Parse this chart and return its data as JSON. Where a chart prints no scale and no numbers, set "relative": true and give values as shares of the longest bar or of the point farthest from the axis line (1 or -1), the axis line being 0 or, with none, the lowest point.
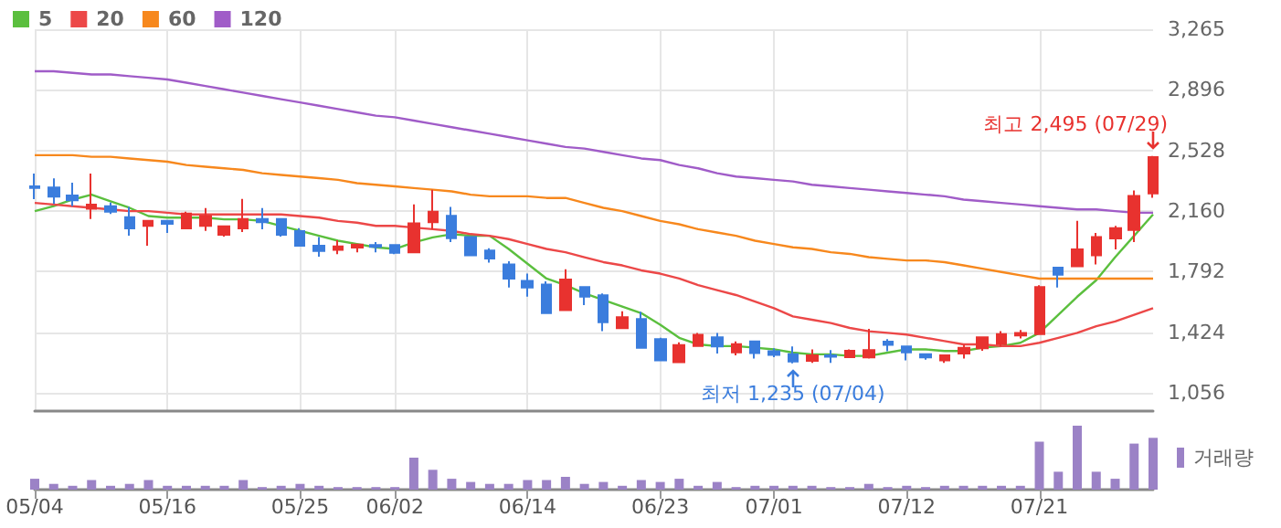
{
  "chart_data": [
    {
      "type": "candlestick",
      "categories": [
        null,
        null,
        null,
        null,
        null,
        null,
        null,
        null,
        null,
        null,
        null,
        null,
        null,
        null,
        null,
        null,
        null,
        null,
        null,
        null,
        null,
        null,
        null,
        null,
        null,
        null,
        null,
        null,
        null,
        null,
        null,
        null,
        null,
        null,
        null,
        null,
        null,
        null,
        null,
        null,
        null,
        null,
        null,
        null,
        null,
        null,
        null,
        null,
        null,
        null,
        null,
        null,
        null,
        null,
        null,
        null,
        null,
        null,
        null,
        null
      ],
      "ohlc": [
        [
          2310,
          2388,
          2233,
          2300
        ],
        [
          2303,
          2359,
          2204,
          2248
        ],
        [
          2255,
          2333,
          2189,
          2226
        ],
        [
          2175,
          2388,
          2112,
          2200
        ],
        [
          2189,
          2212,
          2142,
          2156
        ],
        [
          2123,
          2186,
          2010,
          2055
        ],
        [
          2071,
          2101,
          1950,
          2101
        ],
        [
          2101,
          2101,
          2027,
          2083
        ],
        [
          2055,
          2156,
          2055,
          2145
        ],
        [
          2071,
          2178,
          2040,
          2130
        ],
        [
          2016,
          2068,
          2005,
          2068
        ],
        [
          2055,
          2234,
          2033,
          2112
        ],
        [
          2112,
          2178,
          2049,
          2093
        ],
        [
          2112,
          2112,
          2005,
          2016
        ],
        [
          2038,
          2057,
          1950,
          1950
        ],
        [
          1950,
          2002,
          1883,
          1917
        ],
        [
          1924,
          1983,
          1898,
          1946
        ],
        [
          1939,
          1957,
          1909,
          1957
        ],
        [
          1954,
          1972,
          1909,
          1943
        ],
        [
          1954,
          1954,
          1898,
          1906
        ],
        [
          1909,
          2201,
          1909,
          2086
        ],
        [
          2093,
          2289,
          2049,
          2156
        ],
        [
          2132,
          2186,
          1972,
          1995
        ],
        [
          2002,
          2002,
          1891,
          1891
        ],
        [
          1921,
          1935,
          1847,
          1872
        ],
        [
          1836,
          1855,
          1695,
          1750
        ],
        [
          1736,
          1780,
          1640,
          1695
        ],
        [
          1714,
          1733,
          1540,
          1540
        ],
        [
          1558,
          1806,
          1558,
          1744
        ],
        [
          1699,
          1699,
          1589,
          1640
        ],
        [
          1648,
          1659,
          1430,
          1485
        ],
        [
          1448,
          1551,
          1448,
          1515
        ],
        [
          1504,
          1548,
          1330,
          1330
        ],
        [
          1382,
          1390,
          1253,
          1253
        ],
        [
          1242,
          1363,
          1242,
          1346
        ],
        [
          1341,
          1420,
          1341,
          1408
        ],
        [
          1393,
          1419,
          1294,
          1338
        ],
        [
          1301,
          1368,
          1283,
          1352
        ],
        [
          1368,
          1368,
          1264,
          1297
        ],
        [
          1308,
          1327,
          1272,
          1286
        ],
        [
          1290,
          1338,
          1235,
          1246
        ],
        [
          1250,
          1319,
          1238,
          1283
        ],
        [
          1283,
          1316,
          1238,
          1275
        ],
        [
          1272,
          1319,
          1268,
          1312
        ],
        [
          1271,
          1445,
          1264,
          1316
        ],
        [
          1367,
          1382,
          1308,
          1348
        ],
        [
          1338,
          1338,
          1253,
          1301
        ],
        [
          1290,
          1290,
          1257,
          1271
        ],
        [
          1253,
          1283,
          1238,
          1283
        ],
        [
          1294,
          1349,
          1264,
          1330
        ],
        [
          1327,
          1393,
          1312,
          1393
        ],
        [
          1352,
          1430,
          1338,
          1412
        ],
        [
          1404,
          1438,
          1386,
          1419
        ],
        [
          1412,
          1710,
          1412,
          1699
        ],
        [
          1817,
          1817,
          1695,
          1773
        ],
        [
          1825,
          2101,
          1825,
          1928
        ],
        [
          1891,
          2027,
          1836,
          2002
        ],
        [
          1994,
          2071,
          1928,
          2057
        ],
        [
          2046,
          2285,
          1972,
          2252
        ],
        [
          2267,
          2495,
          2241,
          2488
        ]
      ],
      "colors": [
        "#3b7ddd",
        "#3b7ddd",
        "#3b7ddd",
        "#e8322f",
        "#3b7ddd",
        "#3b7ddd",
        "#e8322f",
        "#3b7ddd",
        "#e8322f",
        "#e8322f",
        "#e8322f",
        "#e8322f",
        "#3b7ddd",
        "#3b7ddd",
        "#3b7ddd",
        "#3b7ddd",
        "#e8322f",
        "#e8322f",
        "#3b7ddd",
        "#3b7ddd",
        "#e8322f",
        "#e8322f",
        "#3b7ddd",
        "#3b7ddd",
        "#3b7ddd",
        "#3b7ddd",
        "#3b7ddd",
        "#3b7ddd",
        "#e8322f",
        "#3b7ddd",
        "#3b7ddd",
        "#e8322f",
        "#3b7ddd",
        "#3b7ddd",
        "#e8322f",
        "#e8322f",
        "#3b7ddd",
        "#e8322f",
        "#3b7ddd",
        "#3b7ddd",
        "#3b7ddd",
        "#e8322f",
        "#3b7ddd",
        "#e8322f",
        "#e8322f",
        "#3b7ddd",
        "#3b7ddd",
        "#3b7ddd",
        "#e8322f",
        "#e8322f",
        "#e8322f",
        "#e8322f",
        "#e8322f",
        "#e8322f",
        "#3b7ddd",
        "#e8322f",
        "#e8322f",
        "#e8322f",
        "#e8322f",
        "#e8322f"
      ],
      "series": [
        {
          "name": "5",
          "type": "line",
          "color": "#5bbf3e",
          "values": [
            2160,
            2190,
            2230,
            2260,
            2220,
            2180,
            2130,
            2120,
            2120,
            2120,
            2110,
            2110,
            2100,
            2070,
            2040,
            2010,
            1980,
            1960,
            1940,
            1930,
            1970,
            2000,
            2020,
            2010,
            2010,
            1930,
            1840,
            1750,
            1710,
            1660,
            1620,
            1580,
            1540,
            1470,
            1390,
            1350,
            1340,
            1340,
            1330,
            1320,
            1300,
            1290,
            1290,
            1280,
            1280,
            1300,
            1320,
            1320,
            1310,
            1310,
            1330,
            1340,
            1360,
            1420,
            1530,
            1640,
            1740,
            1880,
            2010,
            2140
          ]
        },
        {
          "name": "20",
          "type": "line",
          "color": "#ec4848",
          "values": [
            2210,
            2200,
            2190,
            2180,
            2170,
            2160,
            2160,
            2150,
            2140,
            2140,
            2140,
            2140,
            2140,
            2140,
            2130,
            2120,
            2100,
            2090,
            2070,
            2070,
            2060,
            2050,
            2040,
            2020,
            2010,
            1990,
            1960,
            1930,
            1910,
            1880,
            1850,
            1830,
            1800,
            1780,
            1750,
            1710,
            1680,
            1650,
            1610,
            1570,
            1520,
            1500,
            1480,
            1450,
            1430,
            1420,
            1410,
            1390,
            1370,
            1350,
            1350,
            1340,
            1340,
            1360,
            1390,
            1420,
            1460,
            1490,
            1530,
            1570
          ]
        },
        {
          "name": "60",
          "type": "line",
          "color": "#f7881d",
          "values": [
            2500,
            2500,
            2500,
            2490,
            2490,
            2480,
            2470,
            2460,
            2440,
            2430,
            2420,
            2410,
            2390,
            2380,
            2370,
            2360,
            2350,
            2330,
            2320,
            2310,
            2300,
            2290,
            2280,
            2260,
            2250,
            2250,
            2250,
            2240,
            2240,
            2210,
            2180,
            2160,
            2130,
            2100,
            2080,
            2050,
            2030,
            2010,
            1980,
            1960,
            1940,
            1930,
            1910,
            1900,
            1880,
            1870,
            1860,
            1860,
            1850,
            1830,
            1810,
            1790,
            1770,
            1750,
            1750,
            1750,
            1750,
            1750,
            1750,
            1750
          ]
        },
        {
          "name": "120",
          "type": "line",
          "color": "#a05cc8",
          "values": [
            3010,
            3010,
            3000,
            2990,
            2990,
            2980,
            2970,
            2960,
            2940,
            2920,
            2900,
            2880,
            2860,
            2840,
            2820,
            2800,
            2780,
            2760,
            2740,
            2730,
            2710,
            2690,
            2670,
            2650,
            2630,
            2610,
            2590,
            2570,
            2550,
            2540,
            2520,
            2500,
            2480,
            2470,
            2440,
            2420,
            2390,
            2370,
            2360,
            2350,
            2340,
            2320,
            2310,
            2300,
            2290,
            2280,
            2270,
            2260,
            2250,
            2230,
            2220,
            2210,
            2200,
            2190,
            2180,
            2170,
            2170,
            2160,
            2150,
            2150
          ]
        }
      ],
      "ylim": [
        945,
        3265
      ],
      "yticks": [
        {
          "value": 1056,
          "label": "1,056"
        },
        {
          "value": 1424,
          "label": "1,424"
        },
        {
          "value": 1792,
          "label": "1,792"
        },
        {
          "value": 2160,
          "label": "2,160"
        },
        {
          "value": 2528,
          "label": "2,528"
        },
        {
          "value": 2896,
          "label": "2,896"
        },
        {
          "value": 3265,
          "label": "3,265"
        }
      ],
      "grid": true,
      "legend": "top left",
      "tick_labels": "y",
      "marker": "none",
      "annotations": [
        "최고 2,495 (07/29)",
        "최저 1,235 (07/04)"
      ]
    },
    {
      "type": "bar",
      "categories": [
        "05/04",
        null,
        null,
        null,
        null,
        null,
        null,
        "05/16",
        null,
        null,
        null,
        null,
        null,
        null,
        "05/25",
        null,
        null,
        null,
        null,
        "06/02",
        null,
        null,
        null,
        null,
        null,
        null,
        "06/14",
        null,
        null,
        null,
        null,
        null,
        null,
        "06/23",
        null,
        null,
        null,
        null,
        null,
        "07/01",
        null,
        null,
        null,
        null,
        null,
        null,
        "07/12",
        null,
        null,
        null,
        null,
        null,
        null,
        "07/21",
        null,
        null,
        null,
        null,
        null,
        null
      ],
      "series": [
        {
          "name": "거래량",
          "color": "#9b82c6",
          "values": [
            0.17,
            0.09,
            0.06,
            0.15,
            0.06,
            0.09,
            0.15,
            0.06,
            0.06,
            0.06,
            0.06,
            0.15,
            0.04,
            0.06,
            0.09,
            0.06,
            0.04,
            0.04,
            0.04,
            0.04,
            0.5,
            0.31,
            0.17,
            0.12,
            0.09,
            0.09,
            0.15,
            0.15,
            0.2,
            0.09,
            0.12,
            0.06,
            0.15,
            0.12,
            0.17,
            0.06,
            0.12,
            0.04,
            0.06,
            0.06,
            0.06,
            0.06,
            0.04,
            0.04,
            0.09,
            0.04,
            0.06,
            0.04,
            0.06,
            0.06,
            0.06,
            0.06,
            0.06,
            0.75,
            0.28,
            1,
            0.28,
            0.17,
            0.72,
            0.81
          ]
        }
      ],
      "relative": true,
      "legend": "top right",
      "tick_labels": "x"
    }
  ]
}
